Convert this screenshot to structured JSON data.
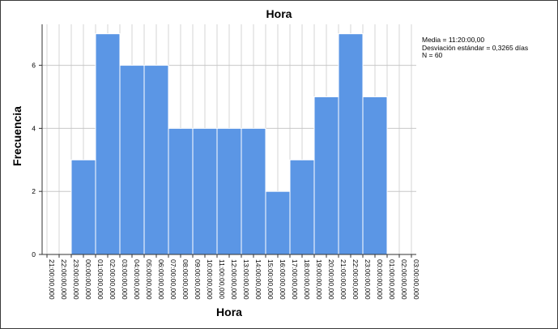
{
  "chart_data": {
    "type": "bar",
    "title": "Hora",
    "xlabel": "Hora",
    "ylabel": "Frecuencia",
    "x_tick_labels": [
      "21:00:00,000",
      "22:00:00,000",
      "23:00:00,000",
      "00:00:00,000",
      "01:00:00,000",
      "02:00:00,000",
      "03:00:00,000",
      "04:00:00,000",
      "05:00:00,000",
      "06:00:00,000",
      "07:00:00,000",
      "08:00:00,000",
      "09:00:00,000",
      "10:00:00,000",
      "11:00:00,000",
      "12:00:00,000",
      "13:00:00,000",
      "14:00:00,000",
      "15:00:00,000",
      "16:00:00,000",
      "17:00:00,000",
      "18:00:00,000",
      "19:00:00,000",
      "20:00:00,000",
      "21:00:00,000",
      "22:00:00,000",
      "23:00:00,000",
      "00:00:00,000",
      "01:00:00,000",
      "02:00:00,000",
      "03:00:00,000"
    ],
    "bars": [
      {
        "start": "23:00",
        "end": "01:00",
        "value": 3
      },
      {
        "start": "01:00",
        "end": "03:00",
        "value": 7
      },
      {
        "start": "03:00",
        "end": "05:00",
        "value": 6
      },
      {
        "start": "05:00",
        "end": "07:00",
        "value": 6
      },
      {
        "start": "07:00",
        "end": "09:00",
        "value": 4
      },
      {
        "start": "09:00",
        "end": "11:00",
        "value": 4
      },
      {
        "start": "11:00",
        "end": "13:00",
        "value": 4
      },
      {
        "start": "13:00",
        "end": "15:00",
        "value": 4
      },
      {
        "start": "15:00",
        "end": "17:00",
        "value": 2
      },
      {
        "start": "17:00",
        "end": "19:00",
        "value": 3
      },
      {
        "start": "19:00",
        "end": "21:00",
        "value": 5
      },
      {
        "start": "21:00",
        "end": "23:00",
        "value": 7
      },
      {
        "start": "23:00",
        "end": "01:00",
        "value": 5
      }
    ],
    "y_ticks": [
      0,
      2,
      4,
      6
    ],
    "ylim": [
      0,
      7.3
    ],
    "grid": true,
    "bar_color": "#5b96e5",
    "bar_edge_color": "#ffffff",
    "stats": [
      "Media = 11:20:00,00",
      "Desviación estándar = 0,3265 días",
      "N = 60"
    ]
  }
}
